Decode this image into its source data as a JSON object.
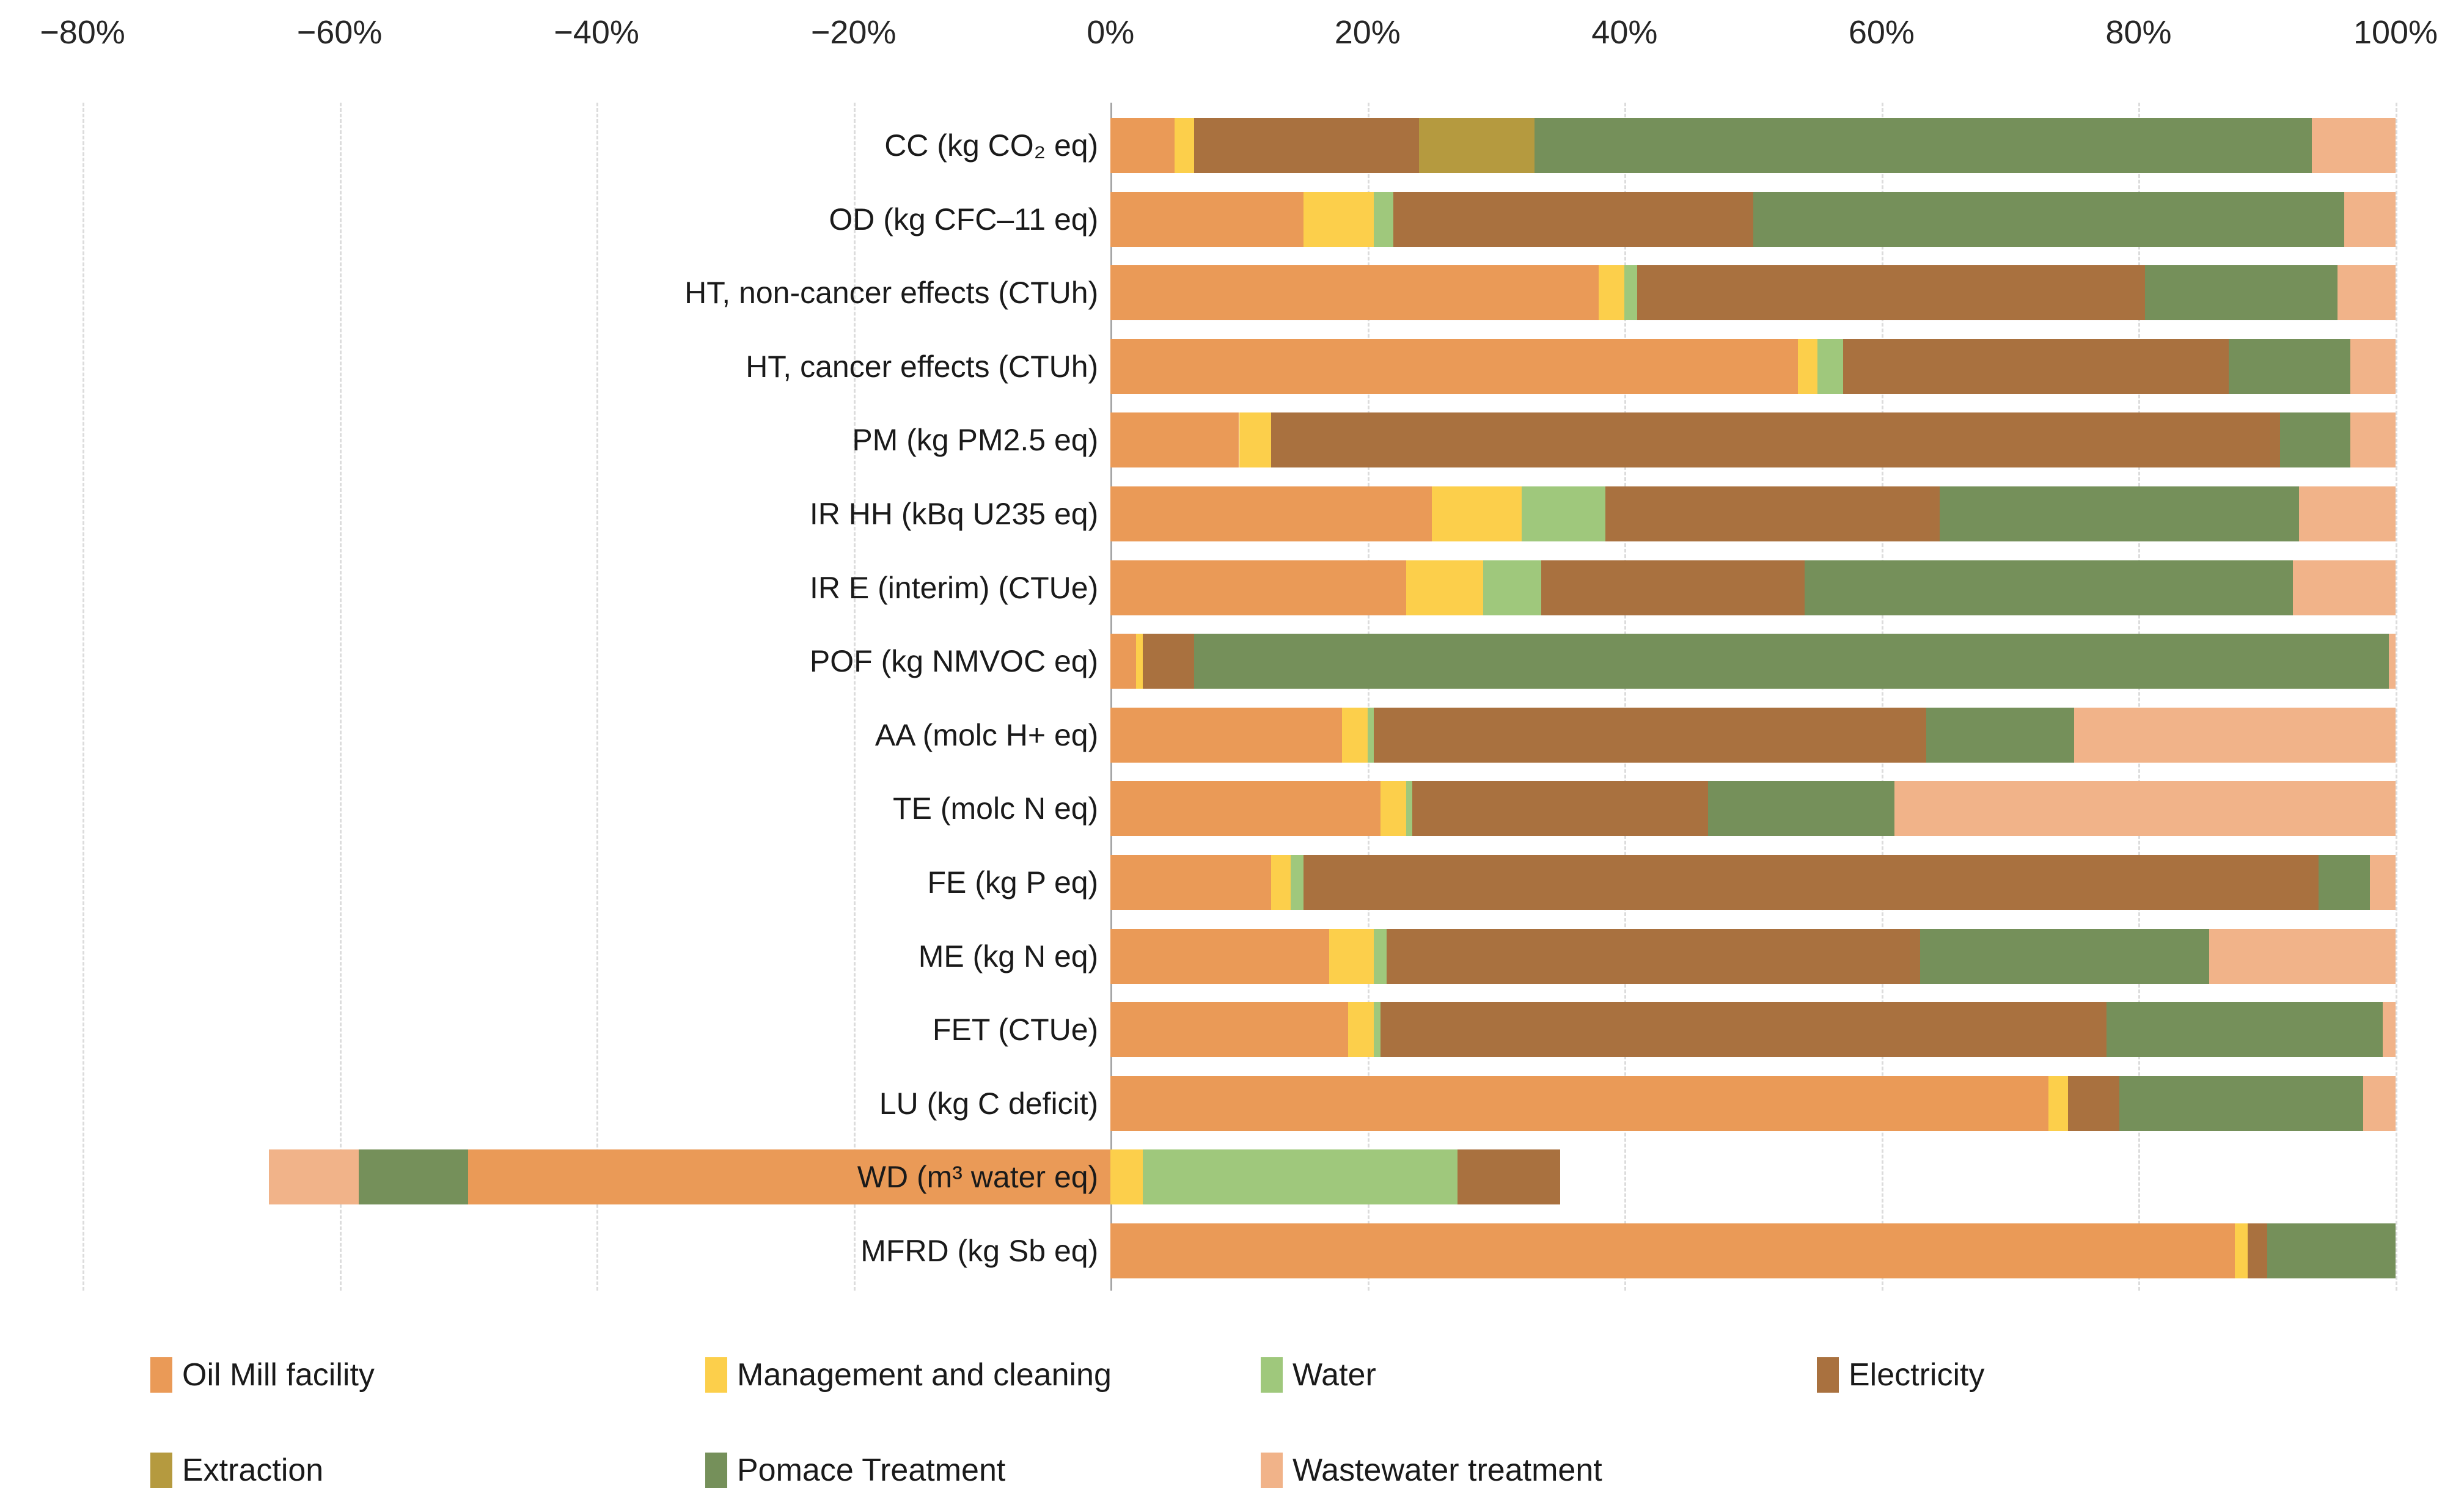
{
  "chart_data": {
    "type": "bar",
    "orientation": "horizontal-stacked",
    "title": "",
    "xlabel": "",
    "ylabel": "",
    "grid": true,
    "legend_position": "bottom",
    "axis": {
      "min": -80,
      "max": 100,
      "tick_step": 20,
      "ticks": [
        -80,
        -60,
        -40,
        -20,
        0,
        20,
        40,
        60,
        80,
        100
      ],
      "tick_labels": [
        "−80%",
        "−60%",
        "−40%",
        "−20%",
        "0%",
        "20%",
        "40%",
        "60%",
        "80%",
        "100%"
      ]
    },
    "categories": [
      "CC (kg CO₂ eq)",
      "OD (kg CFC–11 eq)",
      "HT, non-cancer effects (CTUh)",
      "HT, cancer effects (CTUh)",
      "PM (kg PM2.5 eq)",
      "IR HH (kBq U235 eq)",
      "IR E (interim) (CTUe)",
      "POF (kg NMVOC eq)",
      "AA (molc H+ eq)",
      "TE (molc N eq)",
      "FE (kg P eq)",
      "ME (kg N eq)",
      "FET (CTUe)",
      "LU (kg C deficit)",
      "WD (m³ water eq)",
      "MFRD (kg Sb eq)"
    ],
    "series": [
      {
        "name": "Oil Mill facility",
        "color": "#EA9A57",
        "values": [
          5,
          15,
          38,
          53.5,
          10,
          25,
          23,
          2,
          18,
          21,
          12.5,
          17,
          18.5,
          73,
          -50,
          87.5
        ]
      },
      {
        "name": "Management and cleaning",
        "color": "#FCCF4B",
        "values": [
          1.5,
          5.5,
          2,
          1.5,
          2.5,
          7,
          6,
          0.5,
          2,
          2,
          1.5,
          3.5,
          2,
          1.5,
          2.5,
          1
        ]
      },
      {
        "name": "Water",
        "color": "#9FC87C",
        "values": [
          0,
          1.5,
          1,
          2,
          0,
          6.5,
          4.5,
          0,
          0.5,
          0.5,
          1,
          1,
          0.5,
          0,
          24.5,
          0
        ]
      },
      {
        "name": "Electricity",
        "color": "#A9713F",
        "values": [
          17.5,
          28,
          39.5,
          30,
          78.5,
          26,
          20.5,
          4,
          43,
          23,
          79,
          41.5,
          56.5,
          4,
          8,
          1.5
        ]
      },
      {
        "name": "Extraction",
        "color": "#B59A3F",
        "values": [
          9,
          0,
          0,
          0,
          0,
          0,
          0,
          0,
          0,
          0,
          0,
          0,
          0,
          0,
          0,
          0
        ]
      },
      {
        "name": "Pomace Treatment",
        "color": "#75905A",
        "values": [
          60.5,
          46,
          15,
          9.5,
          5.5,
          28,
          38,
          93,
          11.5,
          14.5,
          4,
          22.5,
          21.5,
          19,
          -8.5,
          10
        ]
      },
      {
        "name": "Wastewater treatment",
        "color": "#F1B389",
        "values": [
          6.5,
          4,
          4.5,
          3.5,
          3.5,
          7.5,
          8,
          0.5,
          25,
          39,
          2,
          14.5,
          1,
          2.5,
          -7,
          0
        ]
      }
    ]
  }
}
